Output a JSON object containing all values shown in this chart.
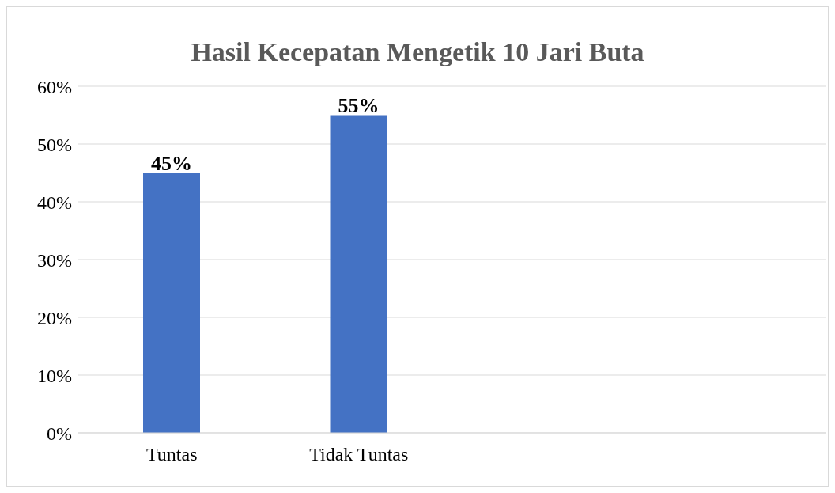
{
  "chart_data": {
    "type": "bar",
    "title": "Hasil Kecepatan Mengetik 10 Jari Buta",
    "categories": [
      "Tuntas",
      "Tidak Tuntas",
      null,
      null
    ],
    "values": [
      45,
      55,
      null,
      null
    ],
    "value_labels": [
      "45%",
      "55%",
      null,
      null
    ],
    "color": "#4472c4",
    "ylim": [
      0,
      60
    ],
    "yticks": [
      {
        "value": 0,
        "label": "0%"
      },
      {
        "value": 10,
        "label": "10%"
      },
      {
        "value": 20,
        "label": "20%"
      },
      {
        "value": 30,
        "label": "30%"
      },
      {
        "value": 40,
        "label": "40%"
      },
      {
        "value": 50,
        "label": "50%"
      },
      {
        "value": 60,
        "label": "60%"
      }
    ],
    "grid": "y",
    "legend": false
  }
}
